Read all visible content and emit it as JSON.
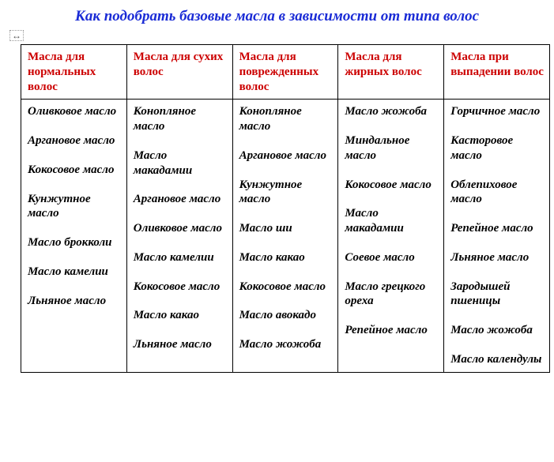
{
  "title_text": "Как подобрать базовые масла в зависимости от типа волос",
  "title_color": "#1a2bd6",
  "header_color": "#cc0000",
  "body_text_color": "#000000",
  "border_color": "#000000",
  "background_color": "#ffffff",
  "columns": [
    {
      "header": "Масла для нормальных волос",
      "items": [
        "Оливковое масло",
        "Аргановое масло",
        "Кокосовое масло",
        "Кунжутное масло",
        "Масло брокколи",
        "Масло камелии",
        "Льняное масло"
      ]
    },
    {
      "header": "Масла для сухих волос",
      "items": [
        "Конопляное масло",
        "Масло макадамии",
        "Аргановое масло",
        "Оливковое масло",
        "Масло камелии",
        "Кокосовое масло",
        "Масло какао",
        "Льняное масло"
      ]
    },
    {
      "header": "Масла для поврежденных волос",
      "items": [
        "Конопляное масло",
        "Аргановое масло",
        "Кунжутное масло",
        "Масло ши",
        "Масло какао",
        "Кокосовое масло",
        "Масло авокадо",
        "Масло жожоба"
      ]
    },
    {
      "header": "Масла для жирных волос",
      "items": [
        "Масло жожоба",
        "Миндальное масло",
        "Кокосовое масло",
        "Масло макадамии",
        "Соевое масло",
        "Масло грецкого ореха",
        "Репейное масло"
      ]
    },
    {
      "header": "Масла при выпадении волос",
      "items": [
        "Горчичное масло",
        "Касторовое масло",
        "Облепиховое масло",
        "Репейное масло",
        "Льняное масло",
        "Зародышей пшеницы",
        "Масло жожоба",
        "Масло календулы"
      ]
    }
  ]
}
